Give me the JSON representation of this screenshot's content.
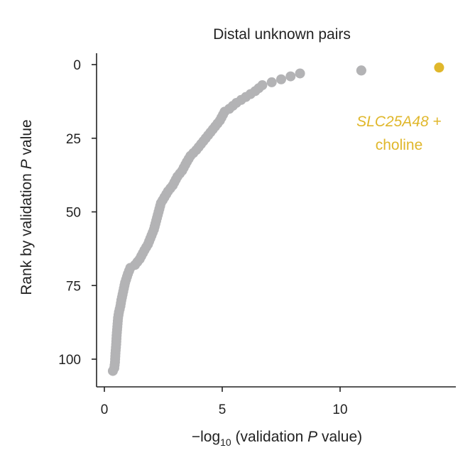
{
  "chart_data": {
    "type": "scatter",
    "title": "Distal unknown pairs",
    "xlabel": {
      "prefix": "−log",
      "subscript": "10",
      "mid": " (validation ",
      "italic": "P",
      "suffix": " value)"
    },
    "ylabel": {
      "prefix": "Rank by validation ",
      "italic": "P",
      "suffix": " value"
    },
    "xlim": [
      -0.3,
      14.8
    ],
    "ylim": [
      0,
      110
    ],
    "y_inverted": true,
    "x_ticks": [
      0,
      5,
      10
    ],
    "y_ticks": [
      0,
      25,
      50,
      75,
      100
    ],
    "grid": false,
    "colors": {
      "main": "#b3b3b5",
      "highlight": "#e0b72b",
      "axis": "#222222"
    },
    "highlight": {
      "x": 14.2,
      "y": 1,
      "label_italic": "SLC25A48",
      "label_suffix": " +",
      "label_line2": "choline"
    },
    "curve_anchors": [
      [
        0.36,
        104
      ],
      [
        0.42,
        103
      ],
      [
        0.45,
        101
      ],
      [
        0.47,
        98
      ],
      [
        0.5,
        95
      ],
      [
        0.52,
        92
      ],
      [
        0.55,
        89
      ],
      [
        0.58,
        86
      ],
      [
        0.62,
        84
      ],
      [
        0.68,
        82
      ],
      [
        0.72,
        80
      ],
      [
        0.8,
        77
      ],
      [
        0.88,
        74
      ],
      [
        1.0,
        71
      ],
      [
        1.1,
        69
      ],
      [
        1.3,
        68
      ],
      [
        1.5,
        66
      ],
      [
        1.7,
        63
      ],
      [
        1.85,
        61
      ],
      [
        2.0,
        58
      ],
      [
        2.1,
        56
      ],
      [
        2.2,
        53
      ],
      [
        2.3,
        50
      ],
      [
        2.4,
        47
      ],
      [
        2.55,
        45
      ],
      [
        2.7,
        43
      ],
      [
        2.9,
        41
      ],
      [
        3.1,
        38
      ],
      [
        3.3,
        36
      ],
      [
        3.5,
        33
      ],
      [
        3.65,
        31
      ],
      [
        3.9,
        29
      ],
      [
        4.1,
        27
      ],
      [
        4.3,
        25
      ],
      [
        4.5,
        23
      ],
      [
        4.7,
        21
      ],
      [
        4.9,
        19
      ],
      [
        5.1,
        16
      ],
      [
        5.3,
        15
      ],
      [
        5.6,
        13
      ],
      [
        6.0,
        11
      ],
      [
        6.4,
        9
      ],
      [
        6.7,
        7
      ],
      [
        7.1,
        6
      ],
      [
        7.5,
        5
      ],
      [
        8.3,
        3
      ],
      [
        10.9,
        2
      ],
      [
        14.2,
        1
      ]
    ]
  }
}
